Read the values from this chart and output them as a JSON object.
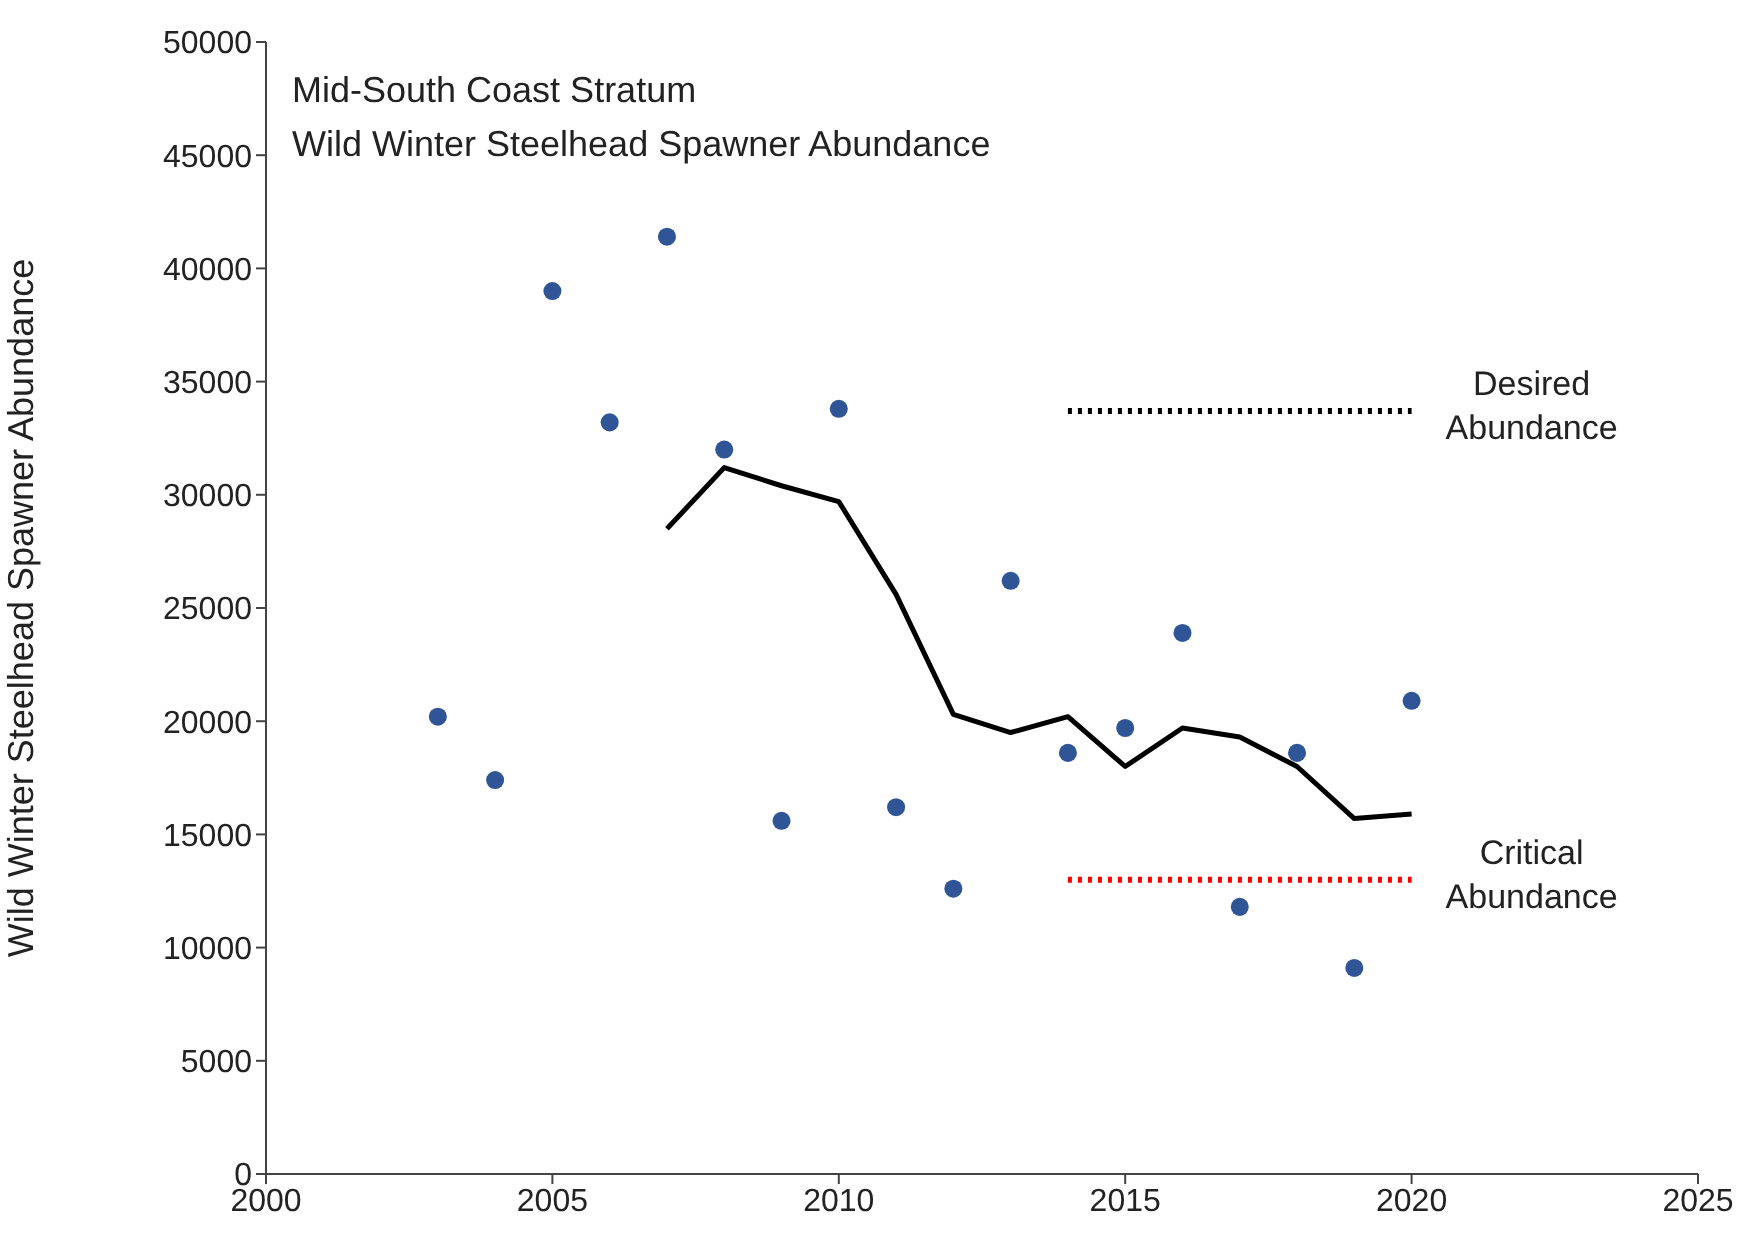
{
  "chart_data": {
    "type": "scatter",
    "title": "Mid-South Coast Stratum",
    "subtitle": "Wild Winter Steelhead Spawner Abundance",
    "ylabel": "Wild Winter Steelhead Spawner Abundance",
    "xlim": [
      2000,
      2025
    ],
    "xticks": [
      2000,
      2005,
      2010,
      2015,
      2020,
      2025
    ],
    "ylim": [
      0,
      50000
    ],
    "yticks": [
      0,
      5000,
      10000,
      15000,
      20000,
      25000,
      30000,
      35000,
      40000,
      45000,
      50000
    ],
    "series": [
      {
        "marker": "circle",
        "color": "#2f5597",
        "x": [
          2003,
          2004,
          2005,
          2006,
          2007,
          2008,
          2009,
          2010,
          2011,
          2012,
          2013,
          2014,
          2015,
          2016,
          2017,
          2018,
          2019,
          2020
        ],
        "values": [
          20200,
          17400,
          39000,
          33200,
          41400,
          32000,
          15600,
          33800,
          16200,
          12600,
          26200,
          18600,
          19700,
          23900,
          11800,
          18600,
          9100,
          20900
        ]
      },
      {
        "type": "line",
        "marker": "none",
        "line_style": "solid",
        "color": "#000000",
        "x": [
          2007,
          2008,
          2009,
          2010,
          2011,
          2012,
          2013,
          2014,
          2015,
          2016,
          2017,
          2018,
          2019,
          2020
        ],
        "values": [
          28500,
          31200,
          30400,
          29700,
          25600,
          20300,
          19500,
          20200,
          18000,
          19700,
          19300,
          18000,
          15700,
          15900
        ]
      },
      {
        "type": "line",
        "name": "Desired Abundance",
        "marker": "none",
        "line_style": "dotted",
        "color": "#000000",
        "x": [
          2014,
          2020
        ],
        "values": [
          33700,
          33700
        ]
      },
      {
        "type": "line",
        "name": "Critical Abundance",
        "marker": "none",
        "line_style": "dotted",
        "color": "#ff0000",
        "x": [
          2014,
          2020
        ],
        "values": [
          13000,
          13000
        ]
      }
    ]
  }
}
